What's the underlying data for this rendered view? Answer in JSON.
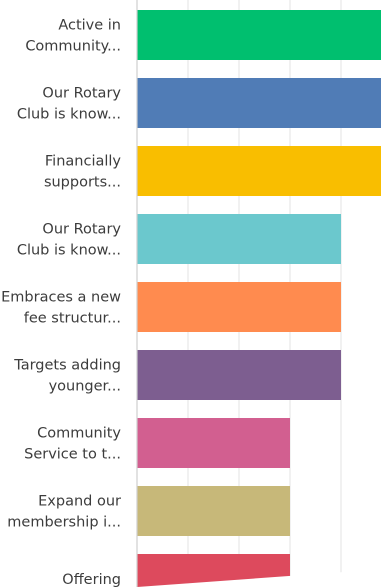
{
  "chart_data": {
    "type": "bar",
    "orientation": "horizontal",
    "categories": [
      "Active in Community...",
      "Our Rotary Club is know...",
      "Financially supports...",
      "Our Rotary Club is know...",
      "Embraces a new fee structur...",
      "Targets adding younger...",
      "Community Service to t...",
      "Expand our membership i...",
      "Offering"
    ],
    "label_lines": [
      [
        "Active in",
        "Community..."
      ],
      [
        "Our Rotary",
        "Club is know..."
      ],
      [
        "Financially",
        "supports..."
      ],
      [
        "Our Rotary",
        "Club is know..."
      ],
      [
        "Embraces a new",
        "fee structur..."
      ],
      [
        "Targets adding",
        "younger..."
      ],
      [
        "Community",
        "Service to t..."
      ],
      [
        "Expand our",
        "membership i..."
      ],
      [
        "Offering"
      ]
    ],
    "values": [
      7,
      7,
      6,
      4,
      4,
      4,
      3,
      3,
      3
    ],
    "colors": [
      "#00bf6f",
      "#507cb6",
      "#f9be00",
      "#6bc8cd",
      "#ff8b4f",
      "#7d5e90",
      "#d25f90",
      "#c7b879",
      "#dd4a5d"
    ],
    "xlim": [
      0,
      7
    ],
    "grid": true,
    "legend": "none"
  }
}
